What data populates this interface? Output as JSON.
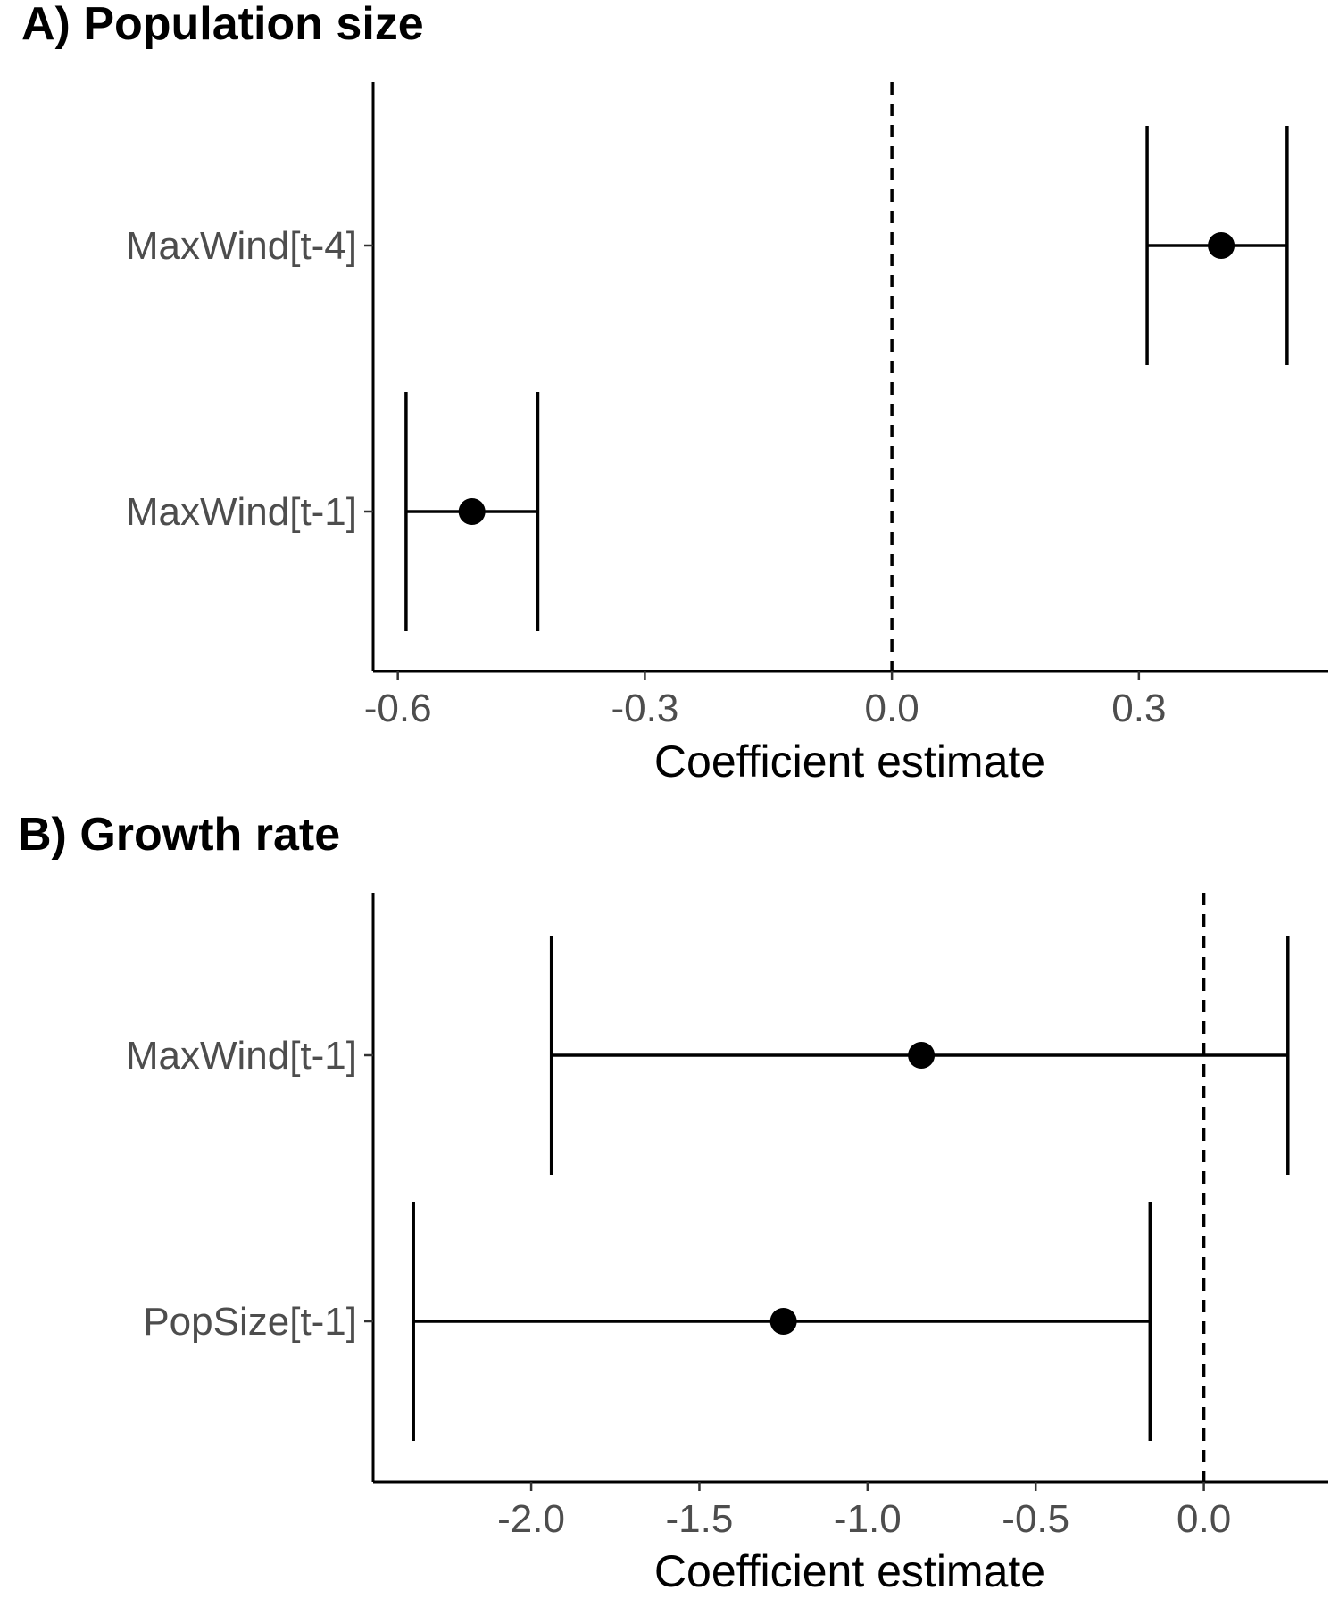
{
  "chart_data": [
    {
      "type": "forest",
      "title": "A) Population size",
      "xlabel": "Coefficient estimate",
      "ylabel": "",
      "xlim": [
        -0.63,
        0.53
      ],
      "xticks": [
        -0.6,
        -0.3,
        0.0,
        0.3
      ],
      "xtick_labels": [
        "-0.6",
        "-0.3",
        "0.0",
        "0.3"
      ],
      "reference_line": 0.0,
      "grid": false,
      "rows": [
        {
          "label": "MaxWind[t-4]",
          "estimate": 0.4,
          "lower": 0.31,
          "upper": 0.48
        },
        {
          "label": "MaxWind[t-1]",
          "estimate": -0.51,
          "lower": -0.59,
          "upper": -0.43
        }
      ]
    },
    {
      "type": "forest",
      "title": "B) Growth rate",
      "xlabel": "Coefficient estimate",
      "ylabel": "",
      "xlim": [
        -2.47,
        0.37
      ],
      "xticks": [
        -2.0,
        -1.5,
        -1.0,
        -0.5,
        0.0
      ],
      "xtick_labels": [
        "-2.0",
        "-1.5",
        "-1.0",
        "-0.5",
        "0.0"
      ],
      "reference_line": 0.0,
      "grid": false,
      "rows": [
        {
          "label": "MaxWind[t-1]",
          "estimate": -0.84,
          "lower": -1.94,
          "upper": 0.25
        },
        {
          "label": "PopSize[t-1]",
          "estimate": -1.25,
          "lower": -2.35,
          "upper": -0.16
        }
      ]
    }
  ]
}
